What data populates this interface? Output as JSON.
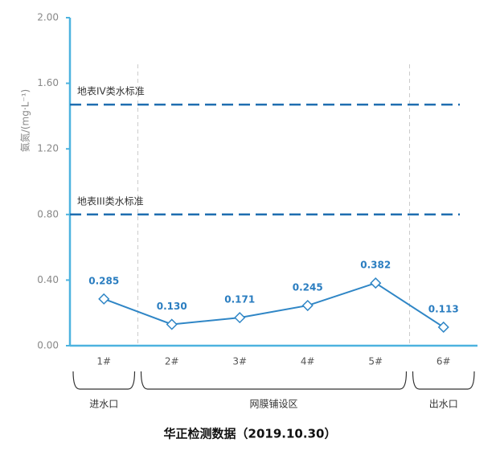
{
  "chart_data": {
    "type": "line",
    "y_label": "氨氮/(mg·L⁻¹)",
    "caption": "华正检测数据（2019.10.30）",
    "categories": [
      "1#",
      "2#",
      "3#",
      "4#",
      "5#",
      "6#"
    ],
    "values": [
      0.285,
      0.13,
      0.171,
      0.245,
      0.382,
      0.113
    ],
    "value_labels": [
      "0.285",
      "0.130",
      "0.171",
      "0.245",
      "0.382",
      "0.113"
    ],
    "color": "#2f86c6",
    "ylim": [
      0,
      2
    ],
    "yticks": [
      {
        "value": 0,
        "label": "0.00"
      },
      {
        "value": 0.4,
        "label": "0.40"
      },
      {
        "value": 0.8,
        "label": "0.80"
      },
      {
        "value": 1.2,
        "label": "1.20"
      },
      {
        "value": 1.6,
        "label": "1.60"
      },
      {
        "value": 2,
        "label": "2.00"
      }
    ],
    "reference_lines": [
      {
        "label": "地表IV类水标准",
        "value": 1.47,
        "color": "#1f6eb0"
      },
      {
        "label": "地表III类水标准",
        "value": 0.8,
        "color": "#1f6eb0"
      }
    ],
    "groups": [
      "进水口",
      "网膜铺设区",
      "出水口"
    ]
  }
}
